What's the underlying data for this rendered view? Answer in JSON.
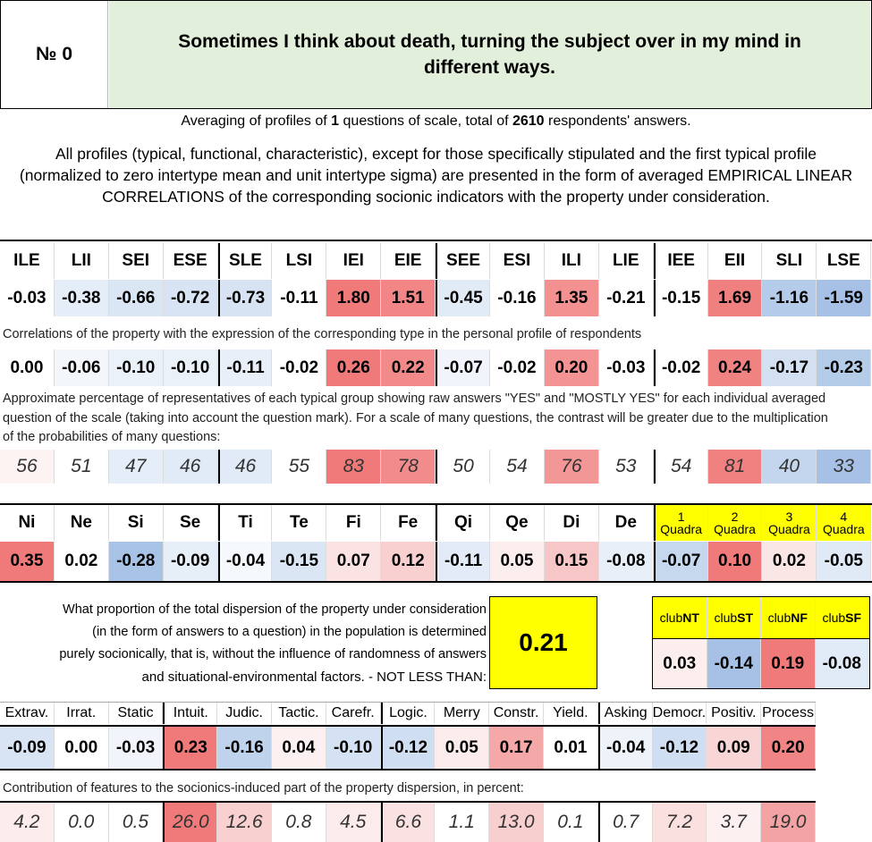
{
  "header": {
    "number_label": "№",
    "number_value": "0",
    "title": "Sometimes I think about death, turning the subject over in my mind in different ways."
  },
  "averaging": {
    "prefix": "Averaging of profiles of",
    "questions": "1",
    "middle": "questions of scale, total of",
    "respondents": "2610",
    "suffix": "respondents' answers."
  },
  "description": "All profiles (typical, functional, characteristic), except for those specifically stipulated and the first typical profile (normalized to zero intertype mean and unit intertype sigma) are presented in the form of averaged EMPIRICAL LINEAR CORRELATIONS of the corresponding socionic indicators with the property under consideration.",
  "types": {
    "headers": [
      "ILE",
      "LII",
      "SEI",
      "ESE",
      "SLE",
      "LSI",
      "IEI",
      "EIE",
      "SEE",
      "ESI",
      "ILI",
      "LIE",
      "IEE",
      "EII",
      "SLI",
      "LSE"
    ],
    "normalized": [
      "-0.03",
      "-0.38",
      "-0.66",
      "-0.72",
      "-0.73",
      "-0.11",
      "1.80",
      "1.51",
      "-0.45",
      "-0.16",
      "1.35",
      "-0.21",
      "-0.15",
      "1.69",
      "-1.16",
      "-1.59"
    ],
    "normalized_colors": [
      "#ffffff",
      "#e4edf8",
      "#dae6f4",
      "#d8e4f4",
      "#d7e3f3",
      "#ffffff",
      "#f07a7a",
      "#f28686",
      "#e1ebf6",
      "#ffffff",
      "#f39090",
      "#ffffff",
      "#ffffff",
      "#f07f7f",
      "#b4cbe9",
      "#a6c1e5"
    ],
    "correlations_caption": "Correlations of the property with the expression of the corresponding type in the personal profile of respondents",
    "correlations": [
      "0.00",
      "-0.06",
      "-0.10",
      "-0.10",
      "-0.11",
      "-0.02",
      "0.26",
      "0.22",
      "-0.07",
      "-0.02",
      "0.20",
      "-0.03",
      "-0.02",
      "0.24",
      "-0.17",
      "-0.23"
    ],
    "correlations_colors": [
      "#ffffff",
      "#f3f7fc",
      "#eaf1f9",
      "#eaf1f9",
      "#e8eff8",
      "#ffffff",
      "#f07a7a",
      "#f28a8a",
      "#f1f5fb",
      "#ffffff",
      "#f39393",
      "#ffffff",
      "#ffffff",
      "#f18282",
      "#d3e0f2",
      "#b5cce9"
    ],
    "percentage_caption": "Approximate percentage of representatives of each typical group showing raw answers \"YES\" and \"MOSTLY YES\" for each individual averaged question of the scale (taking into account the question mark). For a scale of many questions, the contrast will be greater due to the multiplication of the probabilities of many questions:",
    "percentages": [
      "56",
      "51",
      "47",
      "46",
      "46",
      "55",
      "83",
      "78",
      "50",
      "54",
      "76",
      "53",
      "54",
      "81",
      "40",
      "33"
    ],
    "percentages_colors": [
      "#fdf3f3",
      "#ffffff",
      "#e4edf8",
      "#e1ebf7",
      "#e1ebf7",
      "#ffffff",
      "#f07a7a",
      "#f28c8c",
      "#ffffff",
      "#ffffff",
      "#f39696",
      "#ffffff",
      "#ffffff",
      "#f18080",
      "#c4d6ee",
      "#a6c1e5"
    ]
  },
  "functions": {
    "headers": [
      "Ni",
      "Ne",
      "Si",
      "Se",
      "Ti",
      "Te",
      "Fi",
      "Fe",
      "Qi",
      "Qe",
      "Di",
      "De"
    ],
    "values": [
      "0.35",
      "0.02",
      "-0.28",
      "-0.09",
      "-0.04",
      "-0.15",
      "0.07",
      "0.12",
      "-0.11",
      "0.05",
      "0.15",
      "-0.08"
    ],
    "colors": [
      "#f07a7a",
      "#ffffff",
      "#a8c3e6",
      "#e6eef8",
      "#f5f8fc",
      "#dbe6f4",
      "#fbe3e3",
      "#f8d0d0",
      "#e2ebf7",
      "#fdeeee",
      "#f7c6c6",
      "#e8eff8"
    ],
    "quadra_headers": [
      {
        "num": "1",
        "label": "Quadra"
      },
      {
        "num": "2",
        "label": "Quadra"
      },
      {
        "num": "3",
        "label": "Quadra"
      },
      {
        "num": "4",
        "label": "Quadra"
      }
    ],
    "quadra_values": [
      "-0.07",
      "0.10",
      "0.02",
      "-0.05"
    ],
    "quadra_colors": [
      "#c6d8ee",
      "#f07a7a",
      "#fbe6e6",
      "#e0eaf6"
    ]
  },
  "dispersion": {
    "text": "What proportion of the total dispersion of the property under consideration (in the form of answers to a question) in the population is determined purely socionically, that is, without the influence of randomness of answers",
    "text_last": "and situational-environmental factors. - NOT LESS THAN:",
    "value": "0.21"
  },
  "clubs": {
    "headers": [
      {
        "prefix": "club",
        "name": "NT"
      },
      {
        "prefix": "club",
        "name": "ST"
      },
      {
        "prefix": "club",
        "name": "NF"
      },
      {
        "prefix": "club",
        "name": "SF"
      }
    ],
    "values": [
      "0.03",
      "-0.14",
      "0.19",
      "-0.08"
    ],
    "colors": [
      "#fdeeee",
      "#a6c1e5",
      "#f07a7a",
      "#e1ebf7"
    ]
  },
  "features": {
    "headers": [
      "Extrav.",
      "Irrat.",
      "Static",
      "Intuit.",
      "Judic.",
      "Tactic.",
      "Carefr.",
      "Logic.",
      "Merry",
      "Constr.",
      "Yield.",
      "Asking",
      "Democr.",
      "Positiv.",
      "Process"
    ],
    "values": [
      "-0.09",
      "0.00",
      "-0.03",
      "0.23",
      "-0.16",
      "0.04",
      "-0.10",
      "-0.12",
      "0.05",
      "0.17",
      "0.01",
      "-0.04",
      "-0.12",
      "0.09",
      "0.20"
    ],
    "value_colors": [
      "#d8e4f4",
      "#ffffff",
      "#f1f5fb",
      "#f07a7a",
      "#c0d3ec",
      "#fdf0f0",
      "#d5e2f3",
      "#d0def1",
      "#fcecec",
      "#f4a8a8",
      "#ffffff",
      "#eef3fa",
      "#d0def1",
      "#f9d6d6",
      "#f18585"
    ],
    "contribution_caption": "Contribution of features to the socionics-induced part of the property dispersion, in percent:",
    "contributions": [
      "4.2",
      "0.0",
      "0.5",
      "26.0",
      "12.6",
      "0.8",
      "4.5",
      "6.6",
      "1.1",
      "13.0",
      "0.1",
      "0.7",
      "7.2",
      "3.7",
      "19.0"
    ],
    "contribution_colors": [
      "#fcecec",
      "#ffffff",
      "#ffffff",
      "#f07a7a",
      "#f8d0d0",
      "#ffffff",
      "#fcebeb",
      "#fbe2e2",
      "#ffffff",
      "#f8cfcf",
      "#ffffff",
      "#ffffff",
      "#fbe0e0",
      "#fdf0f0",
      "#f3a3a3"
    ]
  }
}
